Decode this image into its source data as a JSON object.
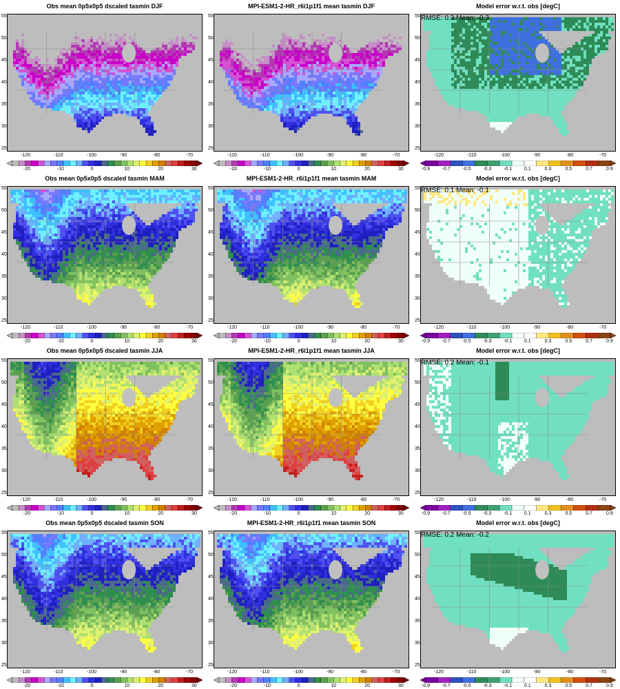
{
  "rows": [
    {
      "season": "DJF",
      "panels": [
        {
          "kind": "obs",
          "title": "Obs mean 0p5x0p5 dscaled tasmin DJF"
        },
        {
          "kind": "model",
          "title": "MPI-ESM1-2-HR_r6i1p1f1 mean tasmin DJF"
        },
        {
          "kind": "error",
          "title": "Model error w.r.t. obs [degC]",
          "stats": "RMSE: 0.3  Mean: -0.3"
        }
      ]
    },
    {
      "season": "MAM",
      "panels": [
        {
          "kind": "obs",
          "title": "Obs mean 0p5x0p5 dscaled tasmin MAM"
        },
        {
          "kind": "model",
          "title": "MPI-ESM1-2-HR_r6i1p1f1 mean tasmin MAM"
        },
        {
          "kind": "error",
          "title": "Model error w.r.t. obs [degC]",
          "stats": "RMSE: 0.1  Mean: -0.1"
        }
      ]
    },
    {
      "season": "JJA",
      "panels": [
        {
          "kind": "obs",
          "title": "Obs mean 0p5x0p5 dscaled tasmin JJA"
        },
        {
          "kind": "model",
          "title": "MPI-ESM1-2-HR_r6i1p1f1 mean tasmin JJA"
        },
        {
          "kind": "error",
          "title": "Model error w.r.t. obs [degC]",
          "stats": "RMSE: 0.2  Mean: -0.1"
        }
      ]
    },
    {
      "season": "SON",
      "panels": [
        {
          "kind": "obs",
          "title": "Obs mean 0p5x0p5 dscaled tasmin SON"
        },
        {
          "kind": "model",
          "title": "MPI-ESM1-2-HR_r6i1p1f1 mean tasmin SON"
        },
        {
          "kind": "error",
          "title": "Model error w.r.t. obs [degC]",
          "stats": "RMSE: 0.2  Mean: -0.2"
        }
      ]
    }
  ],
  "lat_ticks": [
    "25",
    "30",
    "35",
    "40",
    "45",
    "50",
    "55"
  ],
  "lon_ticks": [
    "-120",
    "-110",
    "-100",
    "-90",
    "-80",
    "-70"
  ],
  "temp_colorbar": {
    "labels": [
      "-20",
      "-10",
      "0",
      "10",
      "20",
      "30"
    ],
    "colors": [
      "#bdbdbd",
      "#c58fc5",
      "#b23ab2",
      "#c800c8",
      "#d450d4",
      "#a8a8ff",
      "#7878ff",
      "#5080ff",
      "#40c0ff",
      "#70f0ff",
      "#70b0ff",
      "#5050f0",
      "#3030e0",
      "#2020c0",
      "#4a6a8a",
      "#2f8f4f",
      "#5aa050",
      "#80c060",
      "#b0e070",
      "#e0f070",
      "#ffff40",
      "#f0d020",
      "#e0a000",
      "#d08000",
      "#d06060",
      "#e04040",
      "#c02020",
      "#a00000",
      "#800000"
    ]
  },
  "error_colorbar": {
    "labels": [
      "-0.9",
      "-0.7",
      "-0.5",
      "-0.3",
      "-0.1",
      "0.1",
      "0.3",
      "0.5",
      "0.7",
      "0.9"
    ],
    "colors": [
      "#7a00a0",
      "#a020c0",
      "#3050c0",
      "#4070e0",
      "#2e8b57",
      "#40a070",
      "#70e0c0",
      "#f0fff8",
      "#ffffff",
      "#ffe880",
      "#f0c020",
      "#e09020",
      "#d05010",
      "#b03010",
      "#8b4513"
    ]
  },
  "colors": {
    "background_gray": "#bdbdbd",
    "ocean_gray": "#c0c0c0"
  }
}
